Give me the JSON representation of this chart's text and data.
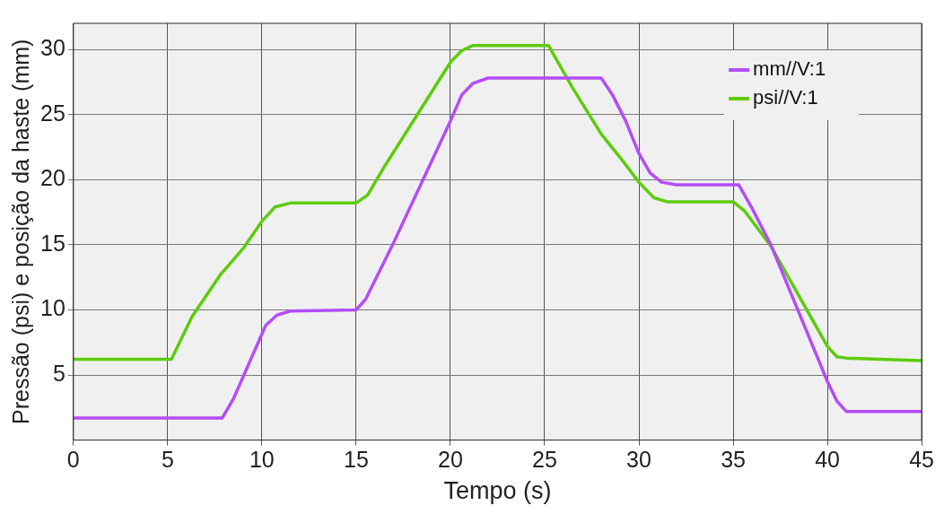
{
  "chart_data": {
    "type": "line",
    "xlabel": "Tempo (s)",
    "ylabel": "Pressão (psi) e posição da haste (mm)",
    "xlim": [
      0,
      45
    ],
    "xticks": [
      0,
      5,
      10,
      15,
      20,
      25,
      30,
      35,
      40,
      45
    ],
    "ylim": [
      0,
      32
    ],
    "yticks": [
      5,
      10,
      15,
      20,
      25,
      30
    ],
    "grid": true,
    "legend": "top right",
    "marker": "none",
    "line_style": "solid",
    "series": [
      {
        "name": "mm//V:1",
        "color": "#b44cfa",
        "x": [
          0,
          7.9,
          8.5,
          9.5,
          10.2,
          10.8,
          11.5,
          15,
          15.5,
          17,
          20,
          20.6,
          21.2,
          22,
          28,
          28.6,
          29.3,
          30,
          30.6,
          31.2,
          32,
          35.3,
          36,
          37,
          40,
          40.5,
          41,
          45
        ],
        "values": [
          1.7,
          1.7,
          3.2,
          6.5,
          8.8,
          9.6,
          9.9,
          10,
          10.8,
          15.2,
          24.5,
          26.5,
          27.4,
          27.8,
          27.8,
          26.5,
          24.5,
          22,
          20.5,
          19.8,
          19.6,
          19.6,
          17.8,
          15,
          4.5,
          3,
          2.2,
          2.2
        ]
      },
      {
        "name": "psi//V:1",
        "color": "#5ccc0c",
        "x": [
          0,
          5.2,
          6.3,
          7.8,
          9,
          10,
          10.7,
          11.5,
          15,
          15.6,
          16.5,
          20,
          20.6,
          21.2,
          25.2,
          26.5,
          28,
          29,
          30,
          30.8,
          31.5,
          35,
          35.6,
          37,
          40,
          40.5,
          41,
          45
        ],
        "values": [
          6.2,
          6.2,
          9.5,
          12.7,
          14.7,
          16.8,
          17.9,
          18.2,
          18.2,
          18.8,
          21,
          29,
          29.9,
          30.3,
          30.3,
          27,
          23.5,
          21.7,
          19.8,
          18.6,
          18.3,
          18.3,
          17.6,
          14.9,
          7.2,
          6.4,
          6.3,
          6.1
        ]
      }
    ]
  }
}
